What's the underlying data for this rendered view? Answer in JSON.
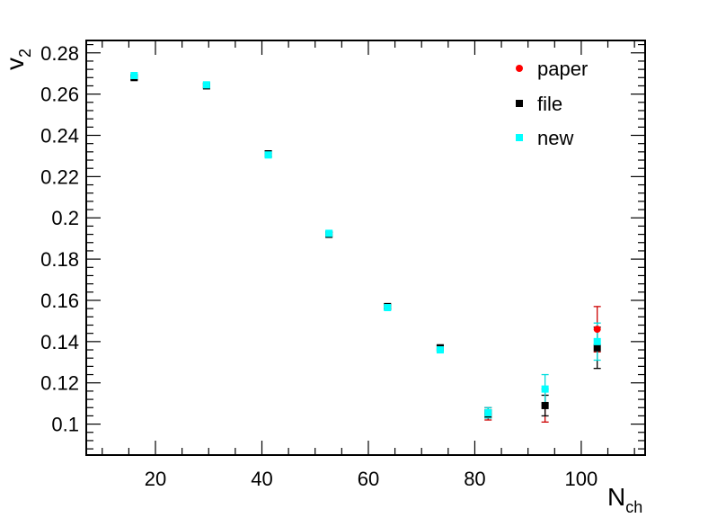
{
  "chart_data": {
    "type": "scatter",
    "xlabel": {
      "main": "N",
      "sub": "ch"
    },
    "ylabel": {
      "main": "v",
      "sub": "2"
    },
    "xlim": [
      7,
      112
    ],
    "ylim": [
      0.085,
      0.286
    ],
    "x_ticks": [
      20,
      40,
      60,
      80,
      100
    ],
    "x_tick_labels": [
      "20",
      "40",
      "60",
      "80",
      "100"
    ],
    "y_ticks": [
      0.1,
      0.12,
      0.14,
      0.16,
      0.18,
      0.2,
      0.22,
      0.24,
      0.26,
      0.28
    ],
    "y_tick_labels": [
      "0.1",
      "0.12",
      "0.14",
      "0.16",
      "0.18",
      "0.2",
      "0.22",
      "0.24",
      "0.26",
      "0.28"
    ],
    "grid": false,
    "legend_position": "top-right",
    "series": [
      {
        "name": "paper",
        "marker": "circle",
        "color": "#ff0000",
        "err_color": "#cc0000",
        "points": [
          {
            "x": 82.5,
            "y": 0.105,
            "err": 0.003
          },
          {
            "x": 93.2,
            "y": 0.109,
            "err": 0.008
          },
          {
            "x": 103.0,
            "y": 0.146,
            "err": 0.011
          }
        ]
      },
      {
        "name": "file",
        "marker": "square",
        "color": "#000000",
        "err_color": "#000000",
        "points": [
          {
            "x": 16.0,
            "y": 0.268,
            "err": 0.001
          },
          {
            "x": 29.6,
            "y": 0.264,
            "err": 0.001
          },
          {
            "x": 41.2,
            "y": 0.231,
            "err": 0.0015
          },
          {
            "x": 52.6,
            "y": 0.192,
            "err": 0.001
          },
          {
            "x": 63.6,
            "y": 0.157,
            "err": 0.001
          },
          {
            "x": 73.5,
            "y": 0.137,
            "err": 0.001
          },
          {
            "x": 82.5,
            "y": 0.105,
            "err": 0.002
          },
          {
            "x": 93.2,
            "y": 0.109,
            "err": 0.005
          },
          {
            "x": 103.0,
            "y": 0.137,
            "err": 0.01
          }
        ]
      },
      {
        "name": "new",
        "marker": "square",
        "color": "#00ffff",
        "err_color": "#00dddd",
        "points": [
          {
            "x": 16.0,
            "y": 0.269,
            "err": 0.0005
          },
          {
            "x": 29.6,
            "y": 0.2645,
            "err": 0.0005
          },
          {
            "x": 41.2,
            "y": 0.2305,
            "err": 0.0008
          },
          {
            "x": 52.6,
            "y": 0.1925,
            "err": 0.0005
          },
          {
            "x": 63.6,
            "y": 0.1565,
            "err": 0.0008
          },
          {
            "x": 73.5,
            "y": 0.136,
            "err": 0.0008
          },
          {
            "x": 82.5,
            "y": 0.1055,
            "err": 0.0025
          },
          {
            "x": 93.2,
            "y": 0.117,
            "err": 0.007
          },
          {
            "x": 103.0,
            "y": 0.14,
            "err": 0.009
          }
        ]
      }
    ]
  }
}
